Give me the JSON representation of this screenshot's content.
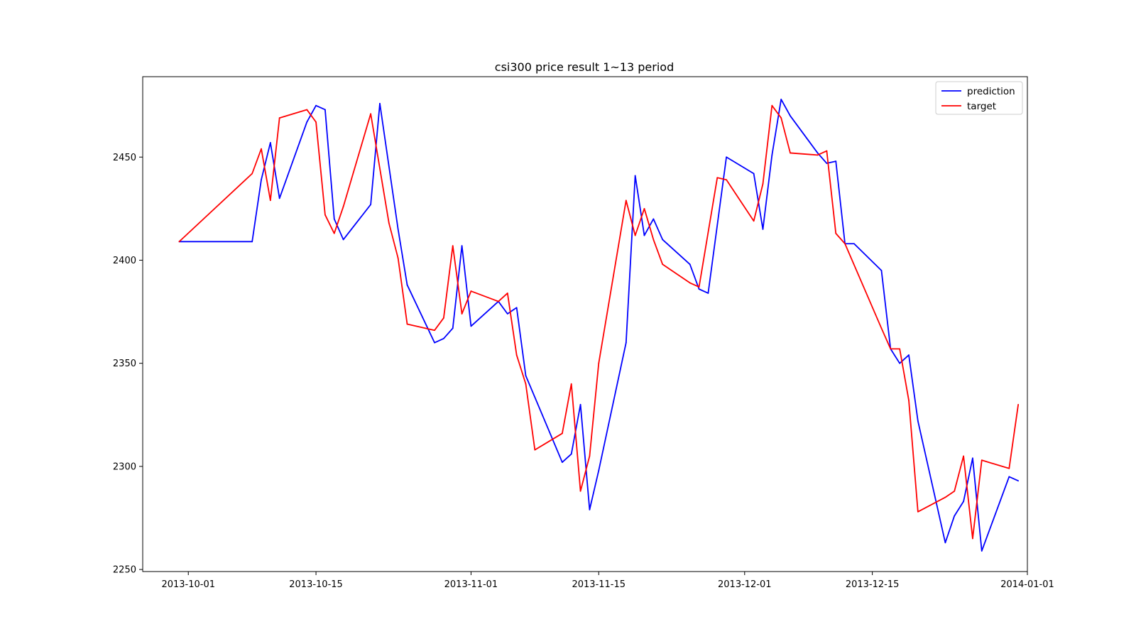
{
  "chart_data": {
    "type": "line",
    "title": "csi300 price result 1~13 period",
    "xlabel": "",
    "ylabel": "",
    "xlim": [
      "2013-09-26",
      "2014-01-01"
    ],
    "ylim": [
      2249,
      2489
    ],
    "x_ticks": [
      "2013-10-01",
      "2013-10-15",
      "2013-11-01",
      "2013-11-15",
      "2013-12-01",
      "2013-12-15",
      "2014-01-01"
    ],
    "y_ticks": [
      2250,
      2300,
      2350,
      2400,
      2450
    ],
    "grid": false,
    "legend_position": "top-right",
    "series": [
      {
        "name": "prediction",
        "color": "#0000ff",
        "points": [
          [
            "2013-09-30",
            2409
          ],
          [
            "2013-10-08",
            2409
          ],
          [
            "2013-10-09",
            2439
          ],
          [
            "2013-10-10",
            2457
          ],
          [
            "2013-10-11",
            2430
          ],
          [
            "2013-10-14",
            2467
          ],
          [
            "2013-10-15",
            2475
          ],
          [
            "2013-10-16",
            2473
          ],
          [
            "2013-10-17",
            2420
          ],
          [
            "2013-10-18",
            2410
          ],
          [
            "2013-10-21",
            2427
          ],
          [
            "2013-10-22",
            2476
          ],
          [
            "2013-10-24",
            2415
          ],
          [
            "2013-10-25",
            2388
          ],
          [
            "2013-10-28",
            2360
          ],
          [
            "2013-10-29",
            2362
          ],
          [
            "2013-10-30",
            2367
          ],
          [
            "2013-10-31",
            2407
          ],
          [
            "2013-11-01",
            2368
          ],
          [
            "2013-11-04",
            2380
          ],
          [
            "2013-11-05",
            2374
          ],
          [
            "2013-11-06",
            2377
          ],
          [
            "2013-11-07",
            2344
          ],
          [
            "2013-11-11",
            2302
          ],
          [
            "2013-11-12",
            2306
          ],
          [
            "2013-11-13",
            2330
          ],
          [
            "2013-11-14",
            2279
          ],
          [
            "2013-11-15",
            2298
          ],
          [
            "2013-11-18",
            2360
          ],
          [
            "2013-11-19",
            2441
          ],
          [
            "2013-11-20",
            2412
          ],
          [
            "2013-11-21",
            2420
          ],
          [
            "2013-11-22",
            2410
          ],
          [
            "2013-11-25",
            2398
          ],
          [
            "2013-11-26",
            2386
          ],
          [
            "2013-11-27",
            2384
          ],
          [
            "2013-11-29",
            2450
          ],
          [
            "2013-12-02",
            2442
          ],
          [
            "2013-12-03",
            2415
          ],
          [
            "2013-12-04",
            2451
          ],
          [
            "2013-12-05",
            2478
          ],
          [
            "2013-12-06",
            2470
          ],
          [
            "2013-12-09",
            2452
          ],
          [
            "2013-12-10",
            2447
          ],
          [
            "2013-12-11",
            2448
          ],
          [
            "2013-12-12",
            2408
          ],
          [
            "2013-12-13",
            2408
          ],
          [
            "2013-12-16",
            2395
          ],
          [
            "2013-12-17",
            2357
          ],
          [
            "2013-12-18",
            2350
          ],
          [
            "2013-12-19",
            2354
          ],
          [
            "2013-12-20",
            2322
          ],
          [
            "2013-12-23",
            2263
          ],
          [
            "2013-12-24",
            2276
          ],
          [
            "2013-12-25",
            2283
          ],
          [
            "2013-12-26",
            2304
          ],
          [
            "2013-12-27",
            2259
          ],
          [
            "2013-12-30",
            2295
          ],
          [
            "2013-12-31",
            2293
          ]
        ]
      },
      {
        "name": "target",
        "color": "#ff0000",
        "points": [
          [
            "2013-09-30",
            2409
          ],
          [
            "2013-10-08",
            2442
          ],
          [
            "2013-10-09",
            2454
          ],
          [
            "2013-10-10",
            2429
          ],
          [
            "2013-10-11",
            2469
          ],
          [
            "2013-10-14",
            2473
          ],
          [
            "2013-10-15",
            2467
          ],
          [
            "2013-10-16",
            2422
          ],
          [
            "2013-10-17",
            2413
          ],
          [
            "2013-10-18",
            2426
          ],
          [
            "2013-10-21",
            2471
          ],
          [
            "2013-10-23",
            2418
          ],
          [
            "2013-10-24",
            2401
          ],
          [
            "2013-10-25",
            2369
          ],
          [
            "2013-10-28",
            2366
          ],
          [
            "2013-10-29",
            2372
          ],
          [
            "2013-10-30",
            2407
          ],
          [
            "2013-10-31",
            2374
          ],
          [
            "2013-11-01",
            2385
          ],
          [
            "2013-11-04",
            2380
          ],
          [
            "2013-11-05",
            2384
          ],
          [
            "2013-11-06",
            2354
          ],
          [
            "2013-11-07",
            2340
          ],
          [
            "2013-11-08",
            2308
          ],
          [
            "2013-11-11",
            2316
          ],
          [
            "2013-11-12",
            2340
          ],
          [
            "2013-11-13",
            2288
          ],
          [
            "2013-11-14",
            2305
          ],
          [
            "2013-11-15",
            2350
          ],
          [
            "2013-11-18",
            2429
          ],
          [
            "2013-11-19",
            2412
          ],
          [
            "2013-11-20",
            2425
          ],
          [
            "2013-11-21",
            2410
          ],
          [
            "2013-11-22",
            2398
          ],
          [
            "2013-11-25",
            2389
          ],
          [
            "2013-11-26",
            2387
          ],
          [
            "2013-11-28",
            2440
          ],
          [
            "2013-11-29",
            2439
          ],
          [
            "2013-12-02",
            2419
          ],
          [
            "2013-12-03",
            2437
          ],
          [
            "2013-12-04",
            2475
          ],
          [
            "2013-12-05",
            2469
          ],
          [
            "2013-12-06",
            2452
          ],
          [
            "2013-12-09",
            2451
          ],
          [
            "2013-12-10",
            2453
          ],
          [
            "2013-12-11",
            2413
          ],
          [
            "2013-12-12",
            2408
          ],
          [
            "2013-12-16",
            2367
          ],
          [
            "2013-12-17",
            2357
          ],
          [
            "2013-12-18",
            2357
          ],
          [
            "2013-12-19",
            2332
          ],
          [
            "2013-12-20",
            2278
          ],
          [
            "2013-12-23",
            2285
          ],
          [
            "2013-12-24",
            2288
          ],
          [
            "2013-12-25",
            2305
          ],
          [
            "2013-12-26",
            2265
          ],
          [
            "2013-12-27",
            2303
          ],
          [
            "2013-12-30",
            2299
          ],
          [
            "2013-12-31",
            2330
          ]
        ]
      }
    ]
  }
}
